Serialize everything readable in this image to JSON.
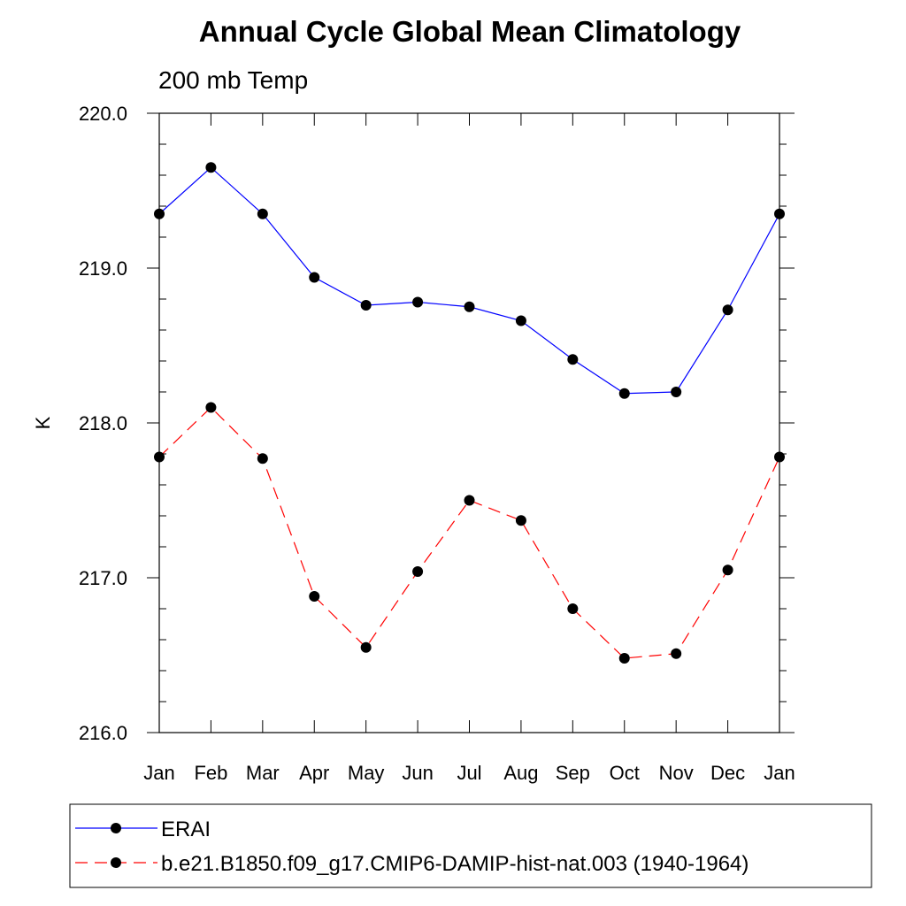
{
  "chart_data": {
    "type": "line",
    "title": "Annual Cycle Global Mean Climatology",
    "subtitle": "200 mb Temp",
    "xlabel": "",
    "ylabel": "K",
    "categories": [
      "Jan",
      "Feb",
      "Mar",
      "Apr",
      "May",
      "Jun",
      "Jul",
      "Aug",
      "Sep",
      "Oct",
      "Nov",
      "Dec",
      "Jan"
    ],
    "ylim": [
      216.0,
      220.0
    ],
    "yticks": [
      "216.0",
      "217.0",
      "218.0",
      "219.0",
      "220.0"
    ],
    "grid": false,
    "legend_position": "bottom",
    "series": [
      {
        "name": "ERAI",
        "color": "#0000ff",
        "line_style": "solid",
        "marker": "filled-circle",
        "values": [
          219.35,
          219.65,
          219.35,
          218.94,
          218.76,
          218.78,
          218.75,
          218.66,
          218.41,
          218.19,
          218.2,
          218.73,
          219.35
        ]
      },
      {
        "name": "b.e21.B1850.f09_g17.CMIP6-DAMIP-hist-nat.003 (1940-1964)",
        "color": "#ff0000",
        "line_style": "dashed",
        "marker": "filled-circle",
        "values": [
          217.78,
          218.1,
          217.77,
          216.88,
          216.55,
          217.04,
          217.5,
          217.37,
          216.8,
          216.48,
          216.51,
          217.05,
          217.78
        ]
      }
    ]
  }
}
